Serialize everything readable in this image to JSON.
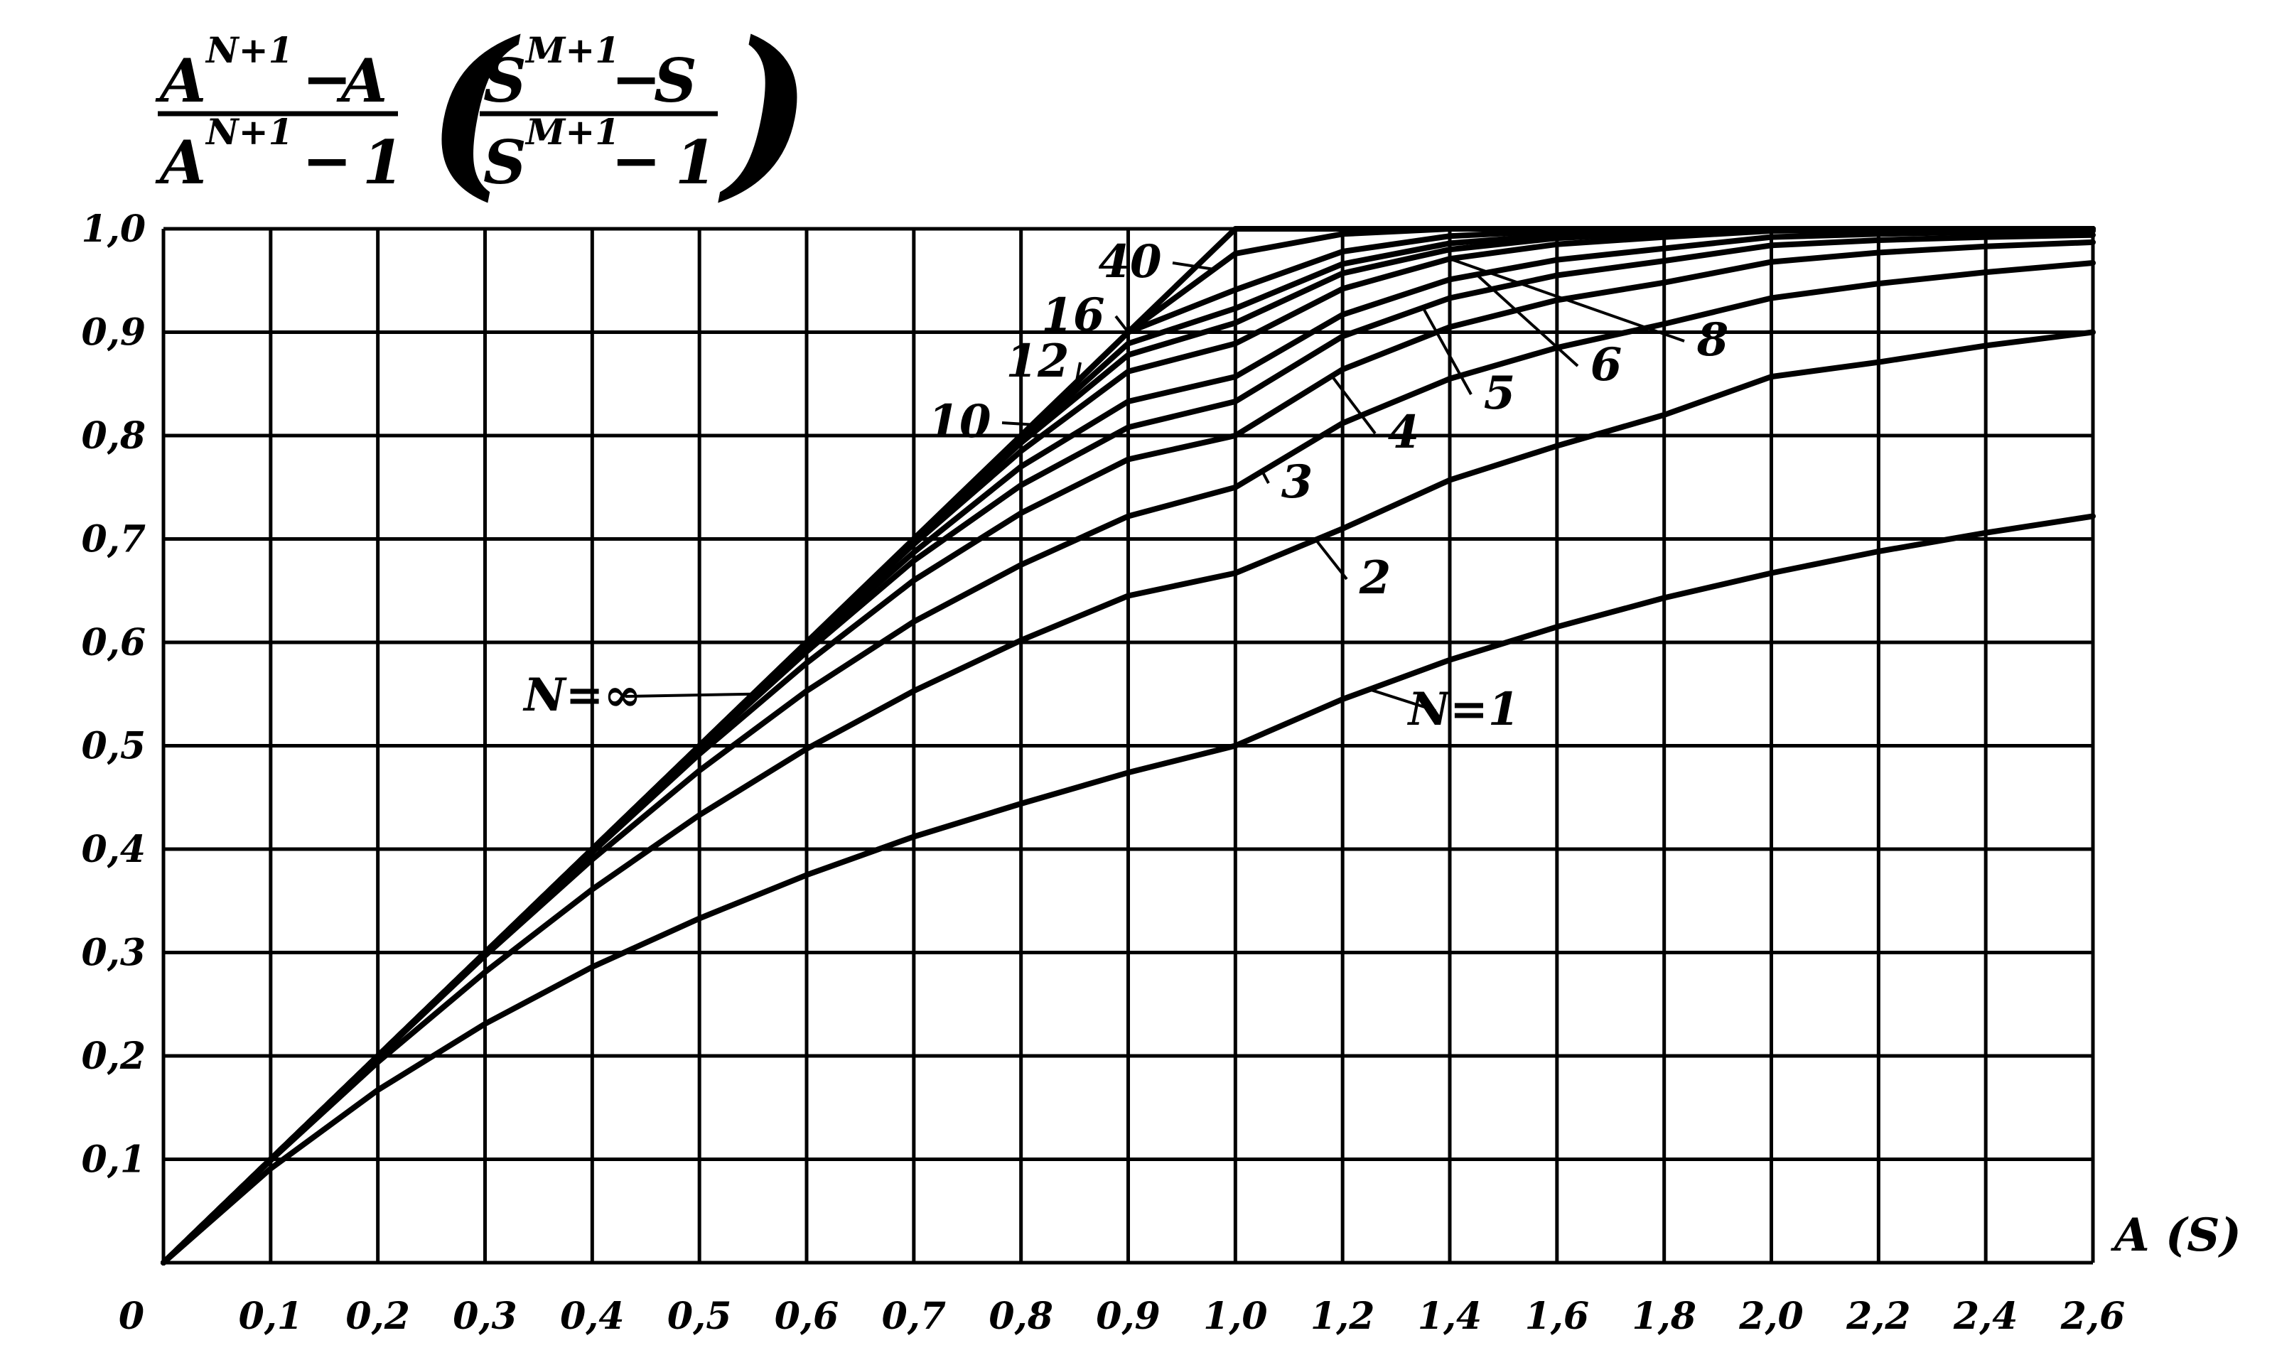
{
  "chart_data": {
    "type": "line",
    "title": "",
    "ylabel": {
      "numerator": "A^(N+1) − A",
      "denominator": "A^(N+1) − 1",
      "alt_numerator": "S^(M+1) − S",
      "alt_denominator": "S^(M+1) − 1",
      "A": "A",
      "S": "S",
      "exp_N": "N+1",
      "exp_M": "M+1",
      "minus": "−",
      "one": "1",
      "left_paren": "(",
      "right_paren": ")"
    },
    "xlabel": "A (S)",
    "xlim": [
      0,
      2.6
    ],
    "ylim": [
      0,
      1.0
    ],
    "grid": true,
    "x_axis_note": "x-axis spacing 0.1 per cell up to 1.0, then 0.2 per cell",
    "x_ticks": [
      {
        "value": 0,
        "label": "0"
      },
      {
        "value": 0.1,
        "label": "0,1"
      },
      {
        "value": 0.2,
        "label": "0,2"
      },
      {
        "value": 0.3,
        "label": "0,3"
      },
      {
        "value": 0.4,
        "label": "0,4"
      },
      {
        "value": 0.5,
        "label": "0,5"
      },
      {
        "value": 0.6,
        "label": "0,6"
      },
      {
        "value": 0.7,
        "label": "0,7"
      },
      {
        "value": 0.8,
        "label": "0,8"
      },
      {
        "value": 0.9,
        "label": "0,9"
      },
      {
        "value": 1.0,
        "label": "1,0"
      },
      {
        "value": 1.2,
        "label": "1,2"
      },
      {
        "value": 1.4,
        "label": "1,4"
      },
      {
        "value": 1.6,
        "label": "1,6"
      },
      {
        "value": 1.8,
        "label": "1,8"
      },
      {
        "value": 2.0,
        "label": "2,0"
      },
      {
        "value": 2.2,
        "label": "2,2"
      },
      {
        "value": 2.4,
        "label": "2,4"
      },
      {
        "value": 2.6,
        "label": "2,6"
      }
    ],
    "y_ticks": [
      {
        "value": 0.1,
        "label": "0,1"
      },
      {
        "value": 0.2,
        "label": "0,2"
      },
      {
        "value": 0.3,
        "label": "0,3"
      },
      {
        "value": 0.4,
        "label": "0,4"
      },
      {
        "value": 0.5,
        "label": "0,5"
      },
      {
        "value": 0.6,
        "label": "0,6"
      },
      {
        "value": 0.7,
        "label": "0,7"
      },
      {
        "value": 0.8,
        "label": "0,8"
      },
      {
        "value": 0.9,
        "label": "0,9"
      },
      {
        "value": 1.0,
        "label": "1,0"
      }
    ],
    "x": [
      0,
      0.1,
      0.2,
      0.3,
      0.4,
      0.5,
      0.6,
      0.7,
      0.8,
      0.9,
      1.0,
      1.2,
      1.4,
      1.6,
      1.8,
      2.0,
      2.2,
      2.4,
      2.6
    ],
    "series": [
      {
        "name": "N=1",
        "values": [
          0,
          0.091,
          0.167,
          0.231,
          0.286,
          0.333,
          0.375,
          0.412,
          0.444,
          0.474,
          0.5,
          0.545,
          0.583,
          0.615,
          0.643,
          0.667,
          0.688,
          0.706,
          0.722
        ]
      },
      {
        "name": "2",
        "values": [
          0,
          0.099,
          0.194,
          0.281,
          0.361,
          0.433,
          0.497,
          0.553,
          0.602,
          0.645,
          0.667,
          0.71,
          0.757,
          0.79,
          0.82,
          0.857,
          0.871,
          0.887,
          0.9
        ]
      },
      {
        "name": "3",
        "values": [
          0,
          0.1,
          0.199,
          0.297,
          0.39,
          0.476,
          0.553,
          0.62,
          0.675,
          0.722,
          0.75,
          0.812,
          0.855,
          0.885,
          0.908,
          0.933,
          0.947,
          0.958,
          0.967
        ]
      },
      {
        "name": "4",
        "values": [
          0,
          0.1,
          0.2,
          0.299,
          0.397,
          0.492,
          0.58,
          0.66,
          0.725,
          0.777,
          0.8,
          0.864,
          0.905,
          0.931,
          0.948,
          0.968,
          0.977,
          0.983,
          0.987
        ]
      },
      {
        "name": "5",
        "values": [
          0,
          0.1,
          0.2,
          0.3,
          0.399,
          0.497,
          0.591,
          0.679,
          0.752,
          0.808,
          0.833,
          0.896,
          0.933,
          0.955,
          0.969,
          0.984,
          0.989,
          0.992,
          0.994
        ]
      },
      {
        "name": "6",
        "values": [
          0,
          0.1,
          0.2,
          0.3,
          0.4,
          0.499,
          0.596,
          0.687,
          0.77,
          0.833,
          0.857,
          0.917,
          0.951,
          0.97,
          0.981,
          0.992,
          0.995,
          0.997,
          0.998
        ]
      },
      {
        "name": "8",
        "values": [
          0,
          0.1,
          0.2,
          0.3,
          0.4,
          0.5,
          0.599,
          0.695,
          0.785,
          0.862,
          0.889,
          0.942,
          0.971,
          0.985,
          0.992,
          0.998,
          0.999,
          1.0,
          1.0
        ]
      },
      {
        "name": "10",
        "values": [
          0,
          0.1,
          0.2,
          0.3,
          0.4,
          0.5,
          0.6,
          0.698,
          0.793,
          0.878,
          0.909,
          0.957,
          0.98,
          0.991,
          0.996,
          1.0,
          1.0,
          1.0,
          1.0
        ]
      },
      {
        "name": "12",
        "values": [
          0,
          0.1,
          0.2,
          0.3,
          0.4,
          0.5,
          0.6,
          0.699,
          0.796,
          0.889,
          0.923,
          0.966,
          0.986,
          0.994,
          0.998,
          1.0,
          1.0,
          1.0,
          1.0
        ]
      },
      {
        "name": "16",
        "values": [
          0,
          0.1,
          0.2,
          0.3,
          0.4,
          0.5,
          0.6,
          0.7,
          0.799,
          0.9,
          0.941,
          0.978,
          0.993,
          0.998,
          1.0,
          1.0,
          1.0,
          1.0,
          1.0
        ]
      },
      {
        "name": "40",
        "values": [
          0,
          0.1,
          0.2,
          0.3,
          0.4,
          0.5,
          0.6,
          0.7,
          0.8,
          0.9,
          0.976,
          0.995,
          1.0,
          1.0,
          1.0,
          1.0,
          1.0,
          1.0,
          1.0
        ]
      },
      {
        "name": "N=∞",
        "values": [
          0,
          0.1,
          0.2,
          0.3,
          0.4,
          0.5,
          0.6,
          0.7,
          0.8,
          0.9,
          1.0,
          1.0,
          1.0,
          1.0,
          1.0,
          1.0,
          1.0,
          1.0,
          1.0
        ]
      }
    ],
    "annotations": [
      {
        "text": "N=1",
        "series": "N=1"
      },
      {
        "text": "2",
        "series": "2"
      },
      {
        "text": "3",
        "series": "3"
      },
      {
        "text": "4",
        "series": "4"
      },
      {
        "text": "5",
        "series": "5"
      },
      {
        "text": "6",
        "series": "6"
      },
      {
        "text": "8",
        "series": "8"
      },
      {
        "text": "10",
        "series": "10"
      },
      {
        "text": "12",
        "series": "12"
      },
      {
        "text": "16",
        "series": "16"
      },
      {
        "text": "40",
        "series": "40"
      },
      {
        "text": "N=∞",
        "series": "N=∞"
      }
    ]
  }
}
